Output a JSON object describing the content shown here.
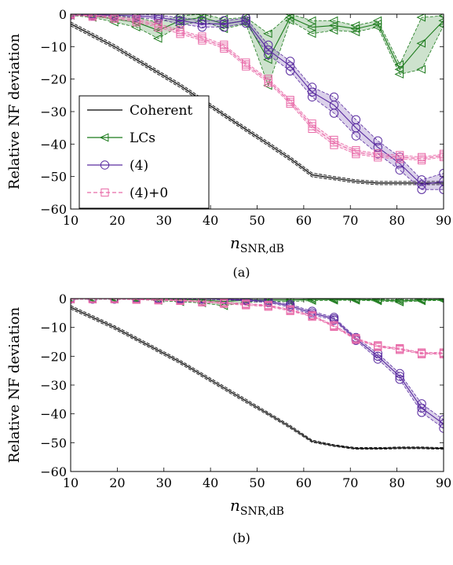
{
  "chart_data": [
    {
      "type": "line",
      "caption": "(a)",
      "xlabel": "n_SNR,dB",
      "ylabel": "Relative NF deviation",
      "xlim": [
        10,
        90
      ],
      "ylim": [
        -60,
        0
      ],
      "xticks": [
        10,
        20,
        30,
        40,
        50,
        60,
        70,
        80,
        90
      ],
      "yticks": [
        0,
        -10,
        -20,
        -30,
        -40,
        -50,
        -60
      ],
      "legend": {
        "position": "bottom-left",
        "entries": [
          "Coherent",
          "LCs",
          "(4)",
          "(4)+0"
        ]
      },
      "x": [
        10,
        14.7,
        19.4,
        24.1,
        28.8,
        33.5,
        38.2,
        42.9,
        47.6,
        52.4,
        57.1,
        61.8,
        66.5,
        71.2,
        75.9,
        80.6,
        85.3,
        90
      ],
      "series": [
        {
          "name": "Coherent",
          "color": "#000000",
          "marker": "none",
          "values": [
            -3,
            -6.5,
            -10,
            -14,
            -18,
            -22,
            -26.5,
            -31,
            -35.5,
            -40,
            -44.5,
            -49.5,
            -50.5,
            -51.5,
            -52,
            -52,
            -52,
            -52
          ],
          "band": [
            0.6,
            0.6,
            0.6,
            0.6,
            0.6,
            0.6,
            0.6,
            0.6,
            0.6,
            0.6,
            0.6,
            0.6,
            0.5,
            0.5,
            0.5,
            0.5,
            0.5,
            0.5
          ]
        },
        {
          "name": "LCs",
          "color": "#1b7a1b",
          "marker": "triangle-left",
          "values": [
            0,
            -0.5,
            -1.5,
            -2.5,
            -5,
            -2,
            -1,
            -3,
            -2,
            -14,
            -1,
            -4,
            -3.5,
            -4.5,
            -3,
            -17,
            -9,
            -2
          ],
          "band": [
            0.4,
            0.5,
            1,
            1.5,
            2.5,
            1.5,
            1,
            1.5,
            1,
            8,
            1,
            2,
            1.5,
            1,
            1,
            1.5,
            8,
            1.5
          ]
        },
        {
          "name": "(4)",
          "color": "#5a2ca0",
          "marker": "circle",
          "values": [
            0,
            -0.2,
            -0.3,
            -0.5,
            -1,
            -2,
            -3,
            -3,
            -2,
            -11,
            -16,
            -24,
            -28,
            -35,
            -41,
            -46,
            -52.5,
            -51.5
          ],
          "band": [
            0.3,
            0.3,
            0.4,
            0.5,
            0.6,
            1,
            1,
            1,
            0.8,
            1.5,
            1.5,
            1.5,
            2.5,
            2.5,
            2,
            2,
            1.5,
            2.5
          ]
        },
        {
          "name": "(4)+0",
          "color": "#e86aa8",
          "marker": "square",
          "values": [
            0,
            -0.5,
            -1,
            -2,
            -3.5,
            -5.5,
            -7.5,
            -10,
            -15.5,
            -20.5,
            -27,
            -34.5,
            -39.5,
            -42.5,
            -43.5,
            -44,
            -44.5,
            -43.5
          ],
          "band": [
            0.3,
            0.3,
            0.4,
            0.5,
            0.6,
            0.6,
            0.6,
            0.6,
            0.6,
            0.6,
            0.6,
            0.8,
            0.8,
            0.6,
            0.6,
            0.6,
            0.5,
            0.5
          ]
        }
      ]
    },
    {
      "type": "line",
      "caption": "(b)",
      "xlabel": "n_SNR,dB",
      "ylabel": "Relative NF deviation",
      "xlim": [
        10,
        90
      ],
      "ylim": [
        -60,
        0
      ],
      "xticks": [
        10,
        20,
        30,
        40,
        50,
        60,
        70,
        80,
        90
      ],
      "yticks": [
        0,
        -10,
        -20,
        -30,
        -40,
        -50,
        -60
      ],
      "x": [
        10,
        14.7,
        19.4,
        24.1,
        28.8,
        33.5,
        38.2,
        42.9,
        47.6,
        52.4,
        57.1,
        61.8,
        66.5,
        71.2,
        75.9,
        80.6,
        85.3,
        90
      ],
      "series": [
        {
          "name": "Coherent",
          "color": "#000000",
          "marker": "none",
          "values": [
            -3,
            -6.5,
            -10,
            -14,
            -18,
            -22,
            -26.5,
            -31,
            -35.5,
            -40,
            -44.5,
            -49.5,
            -51,
            -52,
            -52,
            -51.8,
            -51.8,
            -52
          ],
          "band": [
            0.6,
            0.6,
            0.6,
            0.6,
            0.6,
            0.6,
            0.6,
            0.6,
            0.6,
            0.5,
            0.5,
            0.4,
            0.3,
            0.3,
            0.3,
            0.3,
            0.3,
            0.3
          ]
        },
        {
          "name": "LCs",
          "color": "#1b7a1b",
          "marker": "triangle-left",
          "values": [
            0,
            0,
            0,
            0,
            -0.2,
            -0.3,
            -0.5,
            -1,
            -0.5,
            -0.5,
            -0.5,
            -0.3,
            -0.3,
            -0.3,
            -0.5,
            -0.8,
            -0.5,
            -0.3
          ],
          "band": [
            0.2,
            0.2,
            0.2,
            0.3,
            0.5,
            0.8,
            1,
            1.5,
            0.8,
            0.5,
            0.5,
            0.4,
            0.3,
            0.3,
            0.3,
            0.4,
            0.3,
            0.3
          ]
        },
        {
          "name": "(4)",
          "color": "#5a2ca0",
          "marker": "circle",
          "values": [
            0,
            0,
            0,
            0,
            0,
            0,
            0,
            -0.2,
            -0.5,
            -1,
            -2.5,
            -5,
            -7,
            -14,
            -20,
            -27,
            -38,
            -43.5
          ],
          "band": [
            0.2,
            0.2,
            0.2,
            0.2,
            0.2,
            0.2,
            0.2,
            0.2,
            0.3,
            0.4,
            0.5,
            0.6,
            0.5,
            0.5,
            1,
            1,
            1.5,
            1.5
          ]
        },
        {
          "name": "(4)+0",
          "color": "#e86aa8",
          "marker": "square",
          "values": [
            0,
            0,
            0,
            -0.2,
            -0.4,
            -0.6,
            -1,
            -1.5,
            -2,
            -2.5,
            -4,
            -6,
            -9.5,
            -14,
            -16.5,
            -17.5,
            -19,
            -19
          ],
          "band": [
            0.2,
            0.2,
            0.2,
            0.2,
            0.2,
            0.2,
            0.3,
            0.3,
            0.3,
            0.3,
            0.3,
            0.3,
            0.3,
            0.3,
            0.3,
            0.3,
            0.3,
            0.3
          ]
        }
      ]
    }
  ]
}
